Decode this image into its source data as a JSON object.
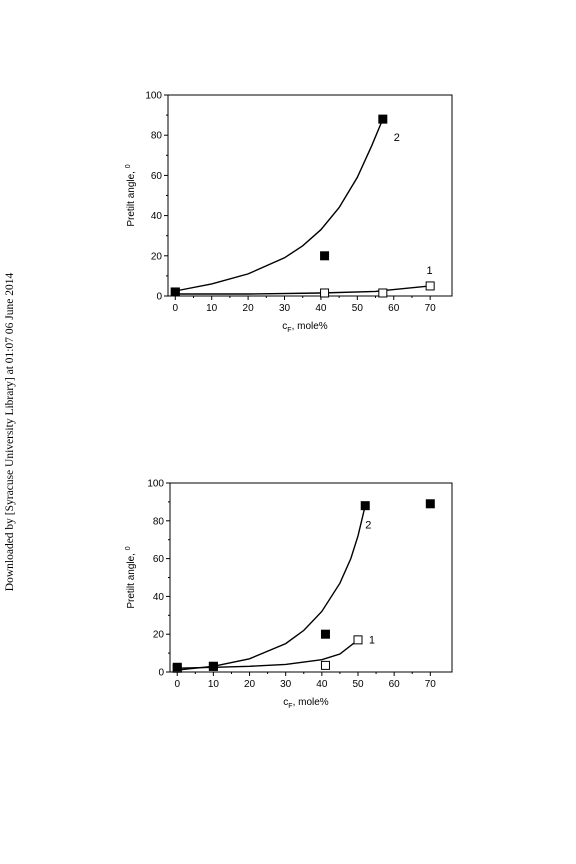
{
  "page": {
    "download_note": "Downloaded by [Syracuse University Library] at 01:07 06 June 2014"
  },
  "chart_data": [
    {
      "type": "scatter",
      "xlabel": "c",
      "xlabel_subscript": "F",
      "xlabel_suffix": ", mole%",
      "ylabel": "Pretilt angle,",
      "ylabel_unit": "0",
      "xlim": [
        -2,
        76
      ],
      "ylim": [
        0,
        100
      ],
      "xticks": [
        0,
        10,
        20,
        30,
        40,
        50,
        60,
        70
      ],
      "yticks": [
        0,
        20,
        40,
        60,
        80,
        100
      ],
      "series": [
        {
          "curve_label": "1",
          "marker": "open-square",
          "points": [
            [
              0,
              2
            ],
            [
              41,
              1.5
            ],
            [
              57,
              1.5
            ],
            [
              70,
              5
            ]
          ],
          "fit": [
            [
              0,
              1
            ],
            [
              20,
              1
            ],
            [
              40,
              1.5
            ],
            [
              55,
              2.3
            ],
            [
              70,
              5
            ]
          ],
          "label_at": [
            69,
            11
          ]
        },
        {
          "curve_label": "2",
          "marker": "filled-square",
          "points": [
            [
              0,
              2
            ],
            [
              41,
              20
            ],
            [
              57,
              88
            ]
          ],
          "fit": [
            [
              0,
              2.5
            ],
            [
              10,
              6
            ],
            [
              20,
              11
            ],
            [
              30,
              19
            ],
            [
              35,
              25
            ],
            [
              40,
              33
            ],
            [
              45,
              44
            ],
            [
              50,
              59
            ],
            [
              54,
              75
            ],
            [
              57,
              88
            ]
          ],
          "label_at": [
            60,
            77
          ]
        }
      ]
    },
    {
      "type": "scatter",
      "xlabel": "c",
      "xlabel_subscript": "F",
      "xlabel_suffix": ", mole%",
      "ylabel": "Pretilt angle,",
      "ylabel_unit": "0",
      "xlim": [
        -2,
        76
      ],
      "ylim": [
        0,
        100
      ],
      "xticks": [
        0,
        10,
        20,
        30,
        40,
        50,
        60,
        70
      ],
      "yticks": [
        0,
        20,
        40,
        60,
        80,
        100
      ],
      "series": [
        {
          "curve_label": "1",
          "marker": "open-square",
          "points": [
            [
              0,
              2
            ],
            [
              10,
              3
            ],
            [
              41,
              3.5
            ],
            [
              50,
              17
            ]
          ],
          "fit": [
            [
              0,
              2
            ],
            [
              10,
              2.5
            ],
            [
              20,
              3
            ],
            [
              30,
              4
            ],
            [
              40,
              6.5
            ],
            [
              45,
              9.5
            ],
            [
              50,
              17
            ]
          ],
          "label_at": [
            53,
            15
          ]
        },
        {
          "curve_label": "2",
          "marker": "filled-square",
          "points": [
            [
              0,
              2.5
            ],
            [
              10,
              3
            ],
            [
              41,
              20
            ],
            [
              52,
              88
            ],
            [
              70,
              89
            ]
          ],
          "fit": [
            [
              0,
              1
            ],
            [
              10,
              3
            ],
            [
              20,
              7
            ],
            [
              30,
              15
            ],
            [
              35,
              22
            ],
            [
              40,
              32
            ],
            [
              45,
              47
            ],
            [
              48,
              60
            ],
            [
              50,
              72
            ],
            [
              52,
              88
            ]
          ],
          "label_at": [
            52,
            76
          ]
        }
      ]
    }
  ]
}
